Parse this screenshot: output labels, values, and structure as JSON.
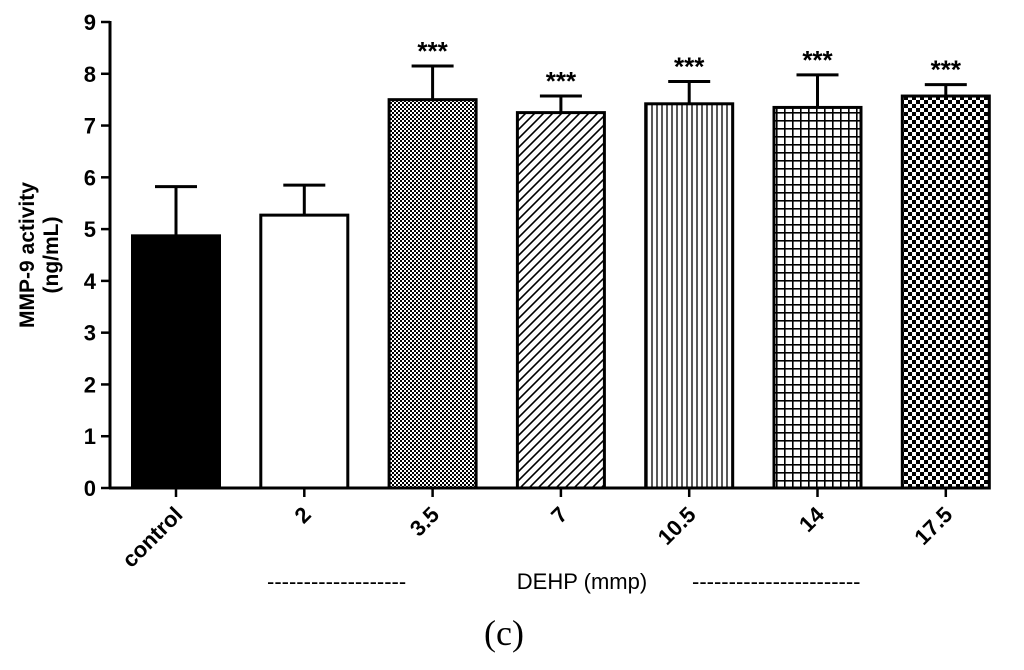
{
  "chart_data": {
    "type": "bar",
    "ylabel_line1": "MMP-9 activity",
    "ylabel_line2": "(ng/mL)",
    "ylim": [
      0,
      9
    ],
    "yticks": [
      "0",
      "1",
      "2",
      "3",
      "4",
      "5",
      "6",
      "7",
      "8",
      "9"
    ],
    "categories": [
      "control",
      "2",
      "3.5",
      "7",
      "10.5",
      "14",
      "17.5"
    ],
    "values": [
      4.87,
      5.27,
      7.5,
      7.25,
      7.42,
      7.35,
      7.57
    ],
    "errors": [
      0.95,
      0.58,
      0.65,
      0.32,
      0.43,
      0.63,
      0.22
    ],
    "patterns": [
      "solid",
      "white",
      "fine-cross",
      "diagonal",
      "vertical",
      "grid",
      "checker"
    ],
    "significance": [
      "",
      "",
      "***",
      "***",
      "***",
      "***",
      "***"
    ],
    "group_label": "DEHP (mmp)",
    "group_dashes_left": "-------------------",
    "group_dashes_right": "-----------------------",
    "panel_label": "(c)"
  }
}
